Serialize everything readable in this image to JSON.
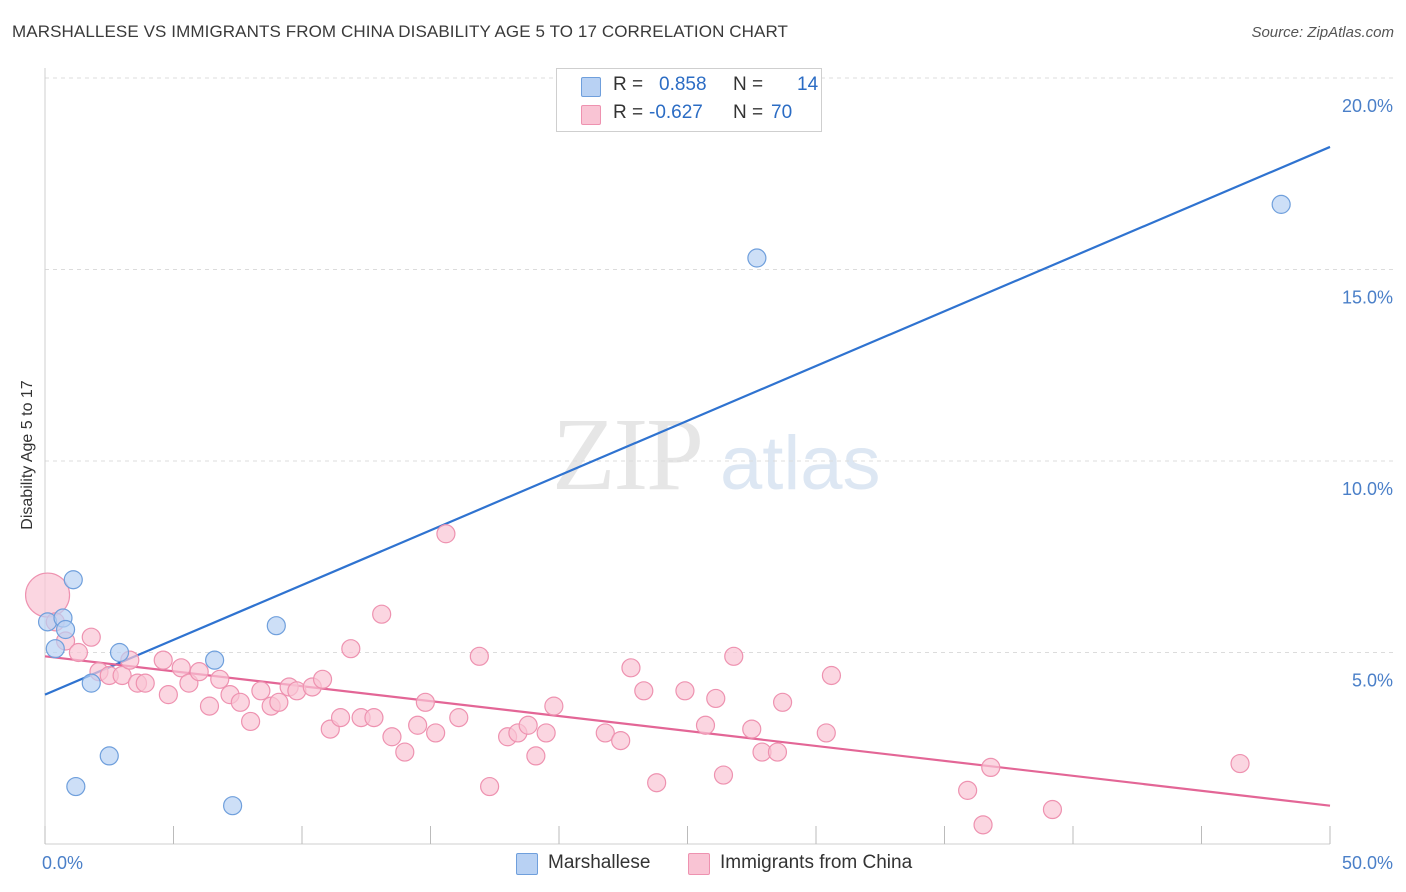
{
  "title": "MARSHALLESE VS IMMIGRANTS FROM CHINA DISABILITY AGE 5 TO 17 CORRELATION CHART",
  "source": "Source: ZipAtlas.com",
  "watermark": {
    "zip": "ZIP",
    "atlas": "atlas"
  },
  "legend": {
    "rows": [
      {
        "r_label": "R =",
        "r_value": "0.858",
        "n_label": "N =",
        "n_value": "14"
      },
      {
        "r_label": "R =",
        "r_value": "-0.627",
        "n_label": "N =",
        "n_value": "70"
      }
    ],
    "bottom": [
      "Marshallese",
      "Immigrants from China"
    ]
  },
  "colors": {
    "blue_fill": "#b8d1f3",
    "blue_stroke": "#6f9fdc",
    "blue_line": "#2f73d0",
    "pink_fill": "#f9c4d4",
    "pink_stroke": "#ee92b0",
    "pink_line": "#e36696",
    "grid": "#dcdcdc",
    "axis_tick": "#4a7fc8"
  },
  "chart_data": {
    "type": "scatter",
    "title": "MARSHALLESE VS IMMIGRANTS FROM CHINA DISABILITY AGE 5 TO 17 CORRELATION CHART",
    "xlabel": "",
    "ylabel": "Disability Age 5 to 17",
    "xlim": [
      0,
      50
    ],
    "ylim": [
      0,
      20
    ],
    "x_tick_labels": [
      "0.0%",
      "50.0%"
    ],
    "y_ticks": [
      5,
      10,
      15,
      20
    ],
    "y_tick_labels": [
      "5.0%",
      "10.0%",
      "15.0%",
      "20.0%"
    ],
    "grid": true,
    "legend_position": "top-center",
    "series": [
      {
        "name": "Marshallese",
        "r": 0.858,
        "n": 14,
        "trend": [
          [
            0,
            3.9
          ],
          [
            50,
            18.2
          ]
        ],
        "points": [
          [
            0.1,
            5.8,
            9
          ],
          [
            0.4,
            5.1,
            9
          ],
          [
            0.7,
            5.9,
            9
          ],
          [
            0.8,
            5.6,
            9
          ],
          [
            1.1,
            6.9,
            9
          ],
          [
            1.2,
            1.5,
            9
          ],
          [
            1.8,
            4.2,
            9
          ],
          [
            2.5,
            2.3,
            9
          ],
          [
            2.9,
            5.0,
            9
          ],
          [
            6.6,
            4.8,
            9
          ],
          [
            7.3,
            1.0,
            9
          ],
          [
            9.0,
            5.7,
            9
          ],
          [
            27.7,
            15.3,
            9
          ],
          [
            48.1,
            16.7,
            9
          ]
        ]
      },
      {
        "name": "Immigrants from China",
        "r": -0.627,
        "n": 70,
        "trend": [
          [
            0,
            4.9
          ],
          [
            50,
            1.0
          ]
        ],
        "points": [
          [
            0.1,
            6.5,
            22
          ],
          [
            0.4,
            5.8,
            9
          ],
          [
            0.8,
            5.3,
            9
          ],
          [
            1.3,
            5.0,
            9
          ],
          [
            1.8,
            5.4,
            9
          ],
          [
            2.1,
            4.5,
            9
          ],
          [
            2.5,
            4.4,
            9
          ],
          [
            3.0,
            4.4,
            9
          ],
          [
            3.3,
            4.8,
            9
          ],
          [
            3.6,
            4.2,
            9
          ],
          [
            3.9,
            4.2,
            9
          ],
          [
            4.6,
            4.8,
            9
          ],
          [
            4.8,
            3.9,
            9
          ],
          [
            5.3,
            4.6,
            9
          ],
          [
            5.6,
            4.2,
            9
          ],
          [
            6.0,
            4.5,
            9
          ],
          [
            6.4,
            3.6,
            9
          ],
          [
            6.8,
            4.3,
            9
          ],
          [
            7.2,
            3.9,
            9
          ],
          [
            7.6,
            3.7,
            9
          ],
          [
            8.0,
            3.2,
            9
          ],
          [
            8.4,
            4.0,
            9
          ],
          [
            8.8,
            3.6,
            9
          ],
          [
            9.1,
            3.7,
            9
          ],
          [
            9.5,
            4.1,
            9
          ],
          [
            9.8,
            4.0,
            9
          ],
          [
            10.4,
            4.1,
            9
          ],
          [
            10.8,
            4.3,
            9
          ],
          [
            11.1,
            3.0,
            9
          ],
          [
            11.5,
            3.3,
            9
          ],
          [
            11.9,
            5.1,
            9
          ],
          [
            12.3,
            3.3,
            9
          ],
          [
            12.8,
            3.3,
            9
          ],
          [
            13.1,
            6.0,
            9
          ],
          [
            13.5,
            2.8,
            9
          ],
          [
            14.0,
            2.4,
            9
          ],
          [
            14.5,
            3.1,
            9
          ],
          [
            14.8,
            3.7,
            9
          ],
          [
            15.2,
            2.9,
            9
          ],
          [
            15.6,
            8.1,
            9
          ],
          [
            16.1,
            3.3,
            9
          ],
          [
            16.9,
            4.9,
            9
          ],
          [
            17.3,
            1.5,
            9
          ],
          [
            18.0,
            2.8,
            9
          ],
          [
            18.4,
            2.9,
            9
          ],
          [
            18.8,
            3.1,
            9
          ],
          [
            19.1,
            2.3,
            9
          ],
          [
            19.5,
            2.9,
            9
          ],
          [
            19.8,
            3.6,
            9
          ],
          [
            21.8,
            2.9,
            9
          ],
          [
            22.4,
            2.7,
            9
          ],
          [
            22.8,
            4.6,
            9
          ],
          [
            23.3,
            4.0,
            9
          ],
          [
            23.8,
            1.6,
            9
          ],
          [
            24.9,
            4.0,
            9
          ],
          [
            25.7,
            3.1,
            9
          ],
          [
            26.1,
            3.8,
            9
          ],
          [
            26.4,
            1.8,
            9
          ],
          [
            26.8,
            4.9,
            9
          ],
          [
            27.5,
            3.0,
            9
          ],
          [
            27.9,
            2.4,
            9
          ],
          [
            28.5,
            2.4,
            9
          ],
          [
            28.7,
            3.7,
            9
          ],
          [
            30.4,
            2.9,
            9
          ],
          [
            30.6,
            4.4,
            9
          ],
          [
            35.9,
            1.4,
            9
          ],
          [
            36.5,
            0.5,
            9
          ],
          [
            36.8,
            2.0,
            9
          ],
          [
            39.2,
            0.9,
            9
          ],
          [
            46.5,
            2.1,
            9
          ]
        ]
      }
    ]
  }
}
